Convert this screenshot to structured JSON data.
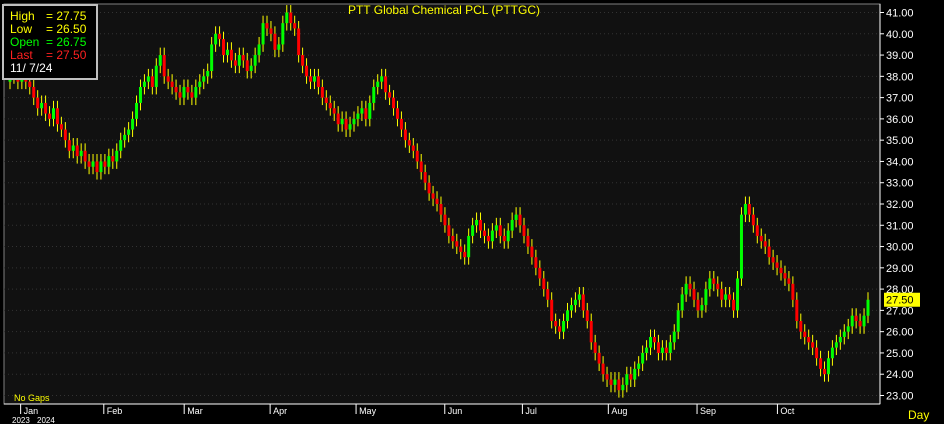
{
  "chart_data": {
    "type": "candlestick",
    "title": "PTT Global Chemical PCL (PTTGC)",
    "interval": "Day",
    "gaps_label": "No Gaps",
    "year_labels": [
      "2023",
      "2024"
    ],
    "y_range": [
      22.6,
      41.4
    ],
    "y_ticks": [
      "23.00",
      "24.00",
      "25.00",
      "26.00",
      "27.00",
      "28.00",
      "29.00",
      "30.00",
      "31.00",
      "32.00",
      "33.00",
      "34.00",
      "35.00",
      "36.00",
      "37.00",
      "38.00",
      "39.00",
      "40.00",
      "41.00"
    ],
    "y_tick_values": [
      23,
      24,
      25,
      26,
      27,
      28,
      29,
      30,
      31,
      32,
      33,
      34,
      35,
      36,
      37,
      38,
      39,
      40,
      41
    ],
    "month_labels": [
      "Jan",
      "Feb",
      "Mar",
      "Apr",
      "May",
      "Jun",
      "Jul",
      "Aug",
      "Sep",
      "Oct"
    ],
    "x_range": [
      "2023-12-27",
      "2024-11-07"
    ],
    "month_starts": [
      "2024-01-02",
      "2024-02-01",
      "2024-03-01",
      "2024-04-01",
      "2024-05-02",
      "2024-06-03",
      "2024-07-01",
      "2024-08-01",
      "2024-09-02",
      "2024-10-01"
    ],
    "last_price_label": "27.50",
    "last_price": 27.5,
    "info_box": {
      "high_label": "High",
      "high_value": "27.75",
      "low_label": "Low",
      "low_value": "26.50",
      "open_label": "Open",
      "open_value": "26.75",
      "last_label": "Last",
      "last_value": "27.50",
      "date": "11/ 7/24"
    },
    "series_closes": [
      38.0,
      38.25,
      37.75,
      38.0,
      37.75,
      37.5,
      37.0,
      36.5,
      36.75,
      36.25,
      36.0,
      36.5,
      35.75,
      35.5,
      35.0,
      34.5,
      34.75,
      34.25,
      34.5,
      34.0,
      33.75,
      34.0,
      33.5,
      34.0,
      33.75,
      34.25,
      34.0,
      34.5,
      35.0,
      35.25,
      35.5,
      36.0,
      36.75,
      37.5,
      37.75,
      38.0,
      37.5,
      38.5,
      39.0,
      38.0,
      37.75,
      37.5,
      37.25,
      37.0,
      37.5,
      37.25,
      37.0,
      37.5,
      37.75,
      38.0,
      38.25,
      39.5,
      40.0,
      39.75,
      39.0,
      39.25,
      38.75,
      38.5,
      39.0,
      38.75,
      38.25,
      38.5,
      39.0,
      39.5,
      40.5,
      40.25,
      40.0,
      39.25,
      39.5,
      40.5,
      41.0,
      40.5,
      40.25,
      39.0,
      38.5,
      38.0,
      37.75,
      38.0,
      37.5,
      37.0,
      36.75,
      36.5,
      36.25,
      35.75,
      36.0,
      35.5,
      35.75,
      36.0,
      36.25,
      36.5,
      36.0,
      36.75,
      37.5,
      37.75,
      38.0,
      37.25,
      37.0,
      36.5,
      36.0,
      35.5,
      35.0,
      34.75,
      34.5,
      34.0,
      33.5,
      33.0,
      32.5,
      32.25,
      32.0,
      31.5,
      31.0,
      30.5,
      30.25,
      30.0,
      29.75,
      29.5,
      30.5,
      31.0,
      31.25,
      30.75,
      30.5,
      30.25,
      30.75,
      31.0,
      30.5,
      30.25,
      30.75,
      31.25,
      31.5,
      31.0,
      30.5,
      30.0,
      29.5,
      29.0,
      28.5,
      28.0,
      27.5,
      26.5,
      26.25,
      26.0,
      26.5,
      27.0,
      27.25,
      27.5,
      27.75,
      27.0,
      26.5,
      25.5,
      25.0,
      24.5,
      24.0,
      23.75,
      23.5,
      23.75,
      23.25,
      23.5,
      24.0,
      23.75,
      24.25,
      24.5,
      25.0,
      25.25,
      25.75,
      25.5,
      25.0,
      25.25,
      25.0,
      25.5,
      26.0,
      27.0,
      27.75,
      28.25,
      28.0,
      27.5,
      27.0,
      27.25,
      28.0,
      28.5,
      28.25,
      28.0,
      27.5,
      27.75,
      27.5,
      27.0,
      28.5,
      31.5,
      32.0,
      31.5,
      31.0,
      30.5,
      30.25,
      30.0,
      29.5,
      29.25,
      29.0,
      28.75,
      28.5,
      28.25,
      27.5,
      26.5,
      26.0,
      25.75,
      25.5,
      25.25,
      24.75,
      24.25,
      24.0,
      24.75,
      25.25,
      25.5,
      25.75,
      26.0,
      26.25,
      26.75,
      26.5,
      26.25,
      26.75,
      27.5
    ],
    "series_opens": [
      37.75,
      38.0,
      38.25,
      37.75,
      38.0,
      37.75,
      37.5,
      37.0,
      36.5,
      36.75,
      36.25,
      36.0,
      36.5,
      35.75,
      35.5,
      35.0,
      34.5,
      34.75,
      34.25,
      34.5,
      34.0,
      33.75,
      34.0,
      33.5,
      34.0,
      33.75,
      34.25,
      34.0,
      34.5,
      35.0,
      35.25,
      35.5,
      36.0,
      36.75,
      37.5,
      37.75,
      38.0,
      37.5,
      38.5,
      39.0,
      38.0,
      37.75,
      37.5,
      37.25,
      37.0,
      37.5,
      37.25,
      37.0,
      37.5,
      37.75,
      38.0,
      38.25,
      39.5,
      40.0,
      39.75,
      39.0,
      39.25,
      38.75,
      38.5,
      39.0,
      38.75,
      38.25,
      38.5,
      39.0,
      39.5,
      40.5,
      40.25,
      40.0,
      39.25,
      39.5,
      40.5,
      41.0,
      40.5,
      40.25,
      39.0,
      38.5,
      38.0,
      37.75,
      38.0,
      37.5,
      37.0,
      36.75,
      36.5,
      36.25,
      35.75,
      36.0,
      35.5,
      35.75,
      36.0,
      36.25,
      36.5,
      36.0,
      36.75,
      37.5,
      37.75,
      38.0,
      37.25,
      37.0,
      36.5,
      36.0,
      35.5,
      35.0,
      34.75,
      34.5,
      34.0,
      33.5,
      33.0,
      32.5,
      32.25,
      32.0,
      31.5,
      31.0,
      30.5,
      30.25,
      30.0,
      29.75,
      29.5,
      30.5,
      31.0,
      31.25,
      30.75,
      30.5,
      30.25,
      30.75,
      31.0,
      30.5,
      30.25,
      30.75,
      31.25,
      31.5,
      31.0,
      30.5,
      30.0,
      29.5,
      29.0,
      28.5,
      28.0,
      27.5,
      26.5,
      26.25,
      26.0,
      26.5,
      27.0,
      27.25,
      27.5,
      27.75,
      27.0,
      26.5,
      25.5,
      25.0,
      24.5,
      24.0,
      23.75,
      23.5,
      23.75,
      23.25,
      23.5,
      24.0,
      23.75,
      24.25,
      24.5,
      25.0,
      25.25,
      25.75,
      25.5,
      25.0,
      25.25,
      25.0,
      25.5,
      26.0,
      27.0,
      27.75,
      28.25,
      28.0,
      27.5,
      27.0,
      27.25,
      28.0,
      28.5,
      28.25,
      28.0,
      27.5,
      27.75,
      27.5,
      27.0,
      28.5,
      31.5,
      32.0,
      31.5,
      31.0,
      30.5,
      30.25,
      30.0,
      29.5,
      29.25,
      29.0,
      28.75,
      28.5,
      28.25,
      27.5,
      26.5,
      26.0,
      25.75,
      25.5,
      25.25,
      24.75,
      24.25,
      24.0,
      24.75,
      25.25,
      25.5,
      25.75,
      26.0,
      26.25,
      26.75,
      26.5,
      26.25,
      26.75
    ],
    "colors": {
      "up": "#00ff00",
      "down": "#ff0000",
      "wick": "#ffff00",
      "axis": "#ffffff",
      "grid": "#333333",
      "title": "#ffff00",
      "last_marker_bg": "#ffff00"
    }
  }
}
